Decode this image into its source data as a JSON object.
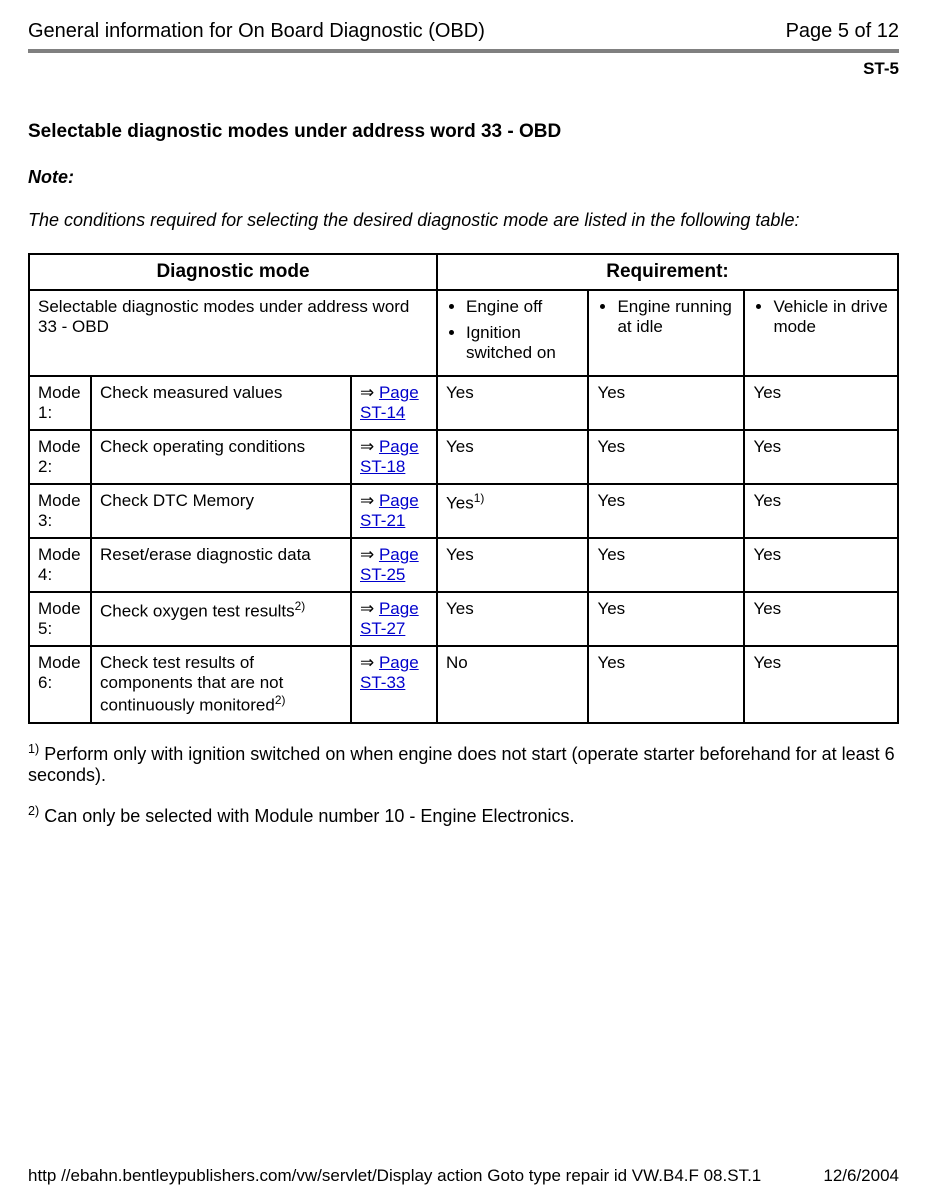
{
  "header": {
    "title": "General information for On Board Diagnostic (OBD)",
    "page_label": "Page 5 of 12"
  },
  "section_code": "ST-5",
  "section_title": "Selectable diagnostic modes under address word 33 - OBD",
  "note_label": "Note:",
  "note_text": "The conditions required for selecting the desired diagnostic mode are listed in the following table:",
  "table": {
    "header_diag": "Diagnostic mode",
    "header_req": "Requirement:",
    "subtitle": "Selectable diagnostic modes under address word 33 - OBD",
    "req_cols": [
      {
        "items": [
          "Engine off",
          "Ignition switched on"
        ]
      },
      {
        "items": [
          "Engine running at idle"
        ]
      },
      {
        "items": [
          "Vehicle in drive mode"
        ]
      }
    ],
    "rows": [
      {
        "mode": "Mode 1:",
        "desc": "Check measured values",
        "desc_sup": "",
        "ref": "Page ST-14",
        "r1": "Yes",
        "r1_sup": "",
        "r2": "Yes",
        "r3": "Yes"
      },
      {
        "mode": "Mode 2:",
        "desc": "Check operating conditions",
        "desc_sup": "",
        "ref": "Page ST-18",
        "r1": "Yes",
        "r1_sup": "",
        "r2": "Yes",
        "r3": "Yes"
      },
      {
        "mode": "Mode 3:",
        "desc": "Check DTC Memory",
        "desc_sup": "",
        "ref": "Page ST-21",
        "r1": "Yes",
        "r1_sup": "1)",
        "r2": "Yes",
        "r3": "Yes"
      },
      {
        "mode": "Mode 4:",
        "desc": "Reset/erase diagnostic data",
        "desc_sup": "",
        "ref": "Page ST-25",
        "r1": "Yes",
        "r1_sup": "",
        "r2": "Yes",
        "r3": "Yes"
      },
      {
        "mode": "Mode 5:",
        "desc": "Check oxygen test results",
        "desc_sup": "2)",
        "ref": "Page ST-27",
        "r1": "Yes",
        "r1_sup": "",
        "r2": "Yes",
        "r3": "Yes"
      },
      {
        "mode": "Mode 6:",
        "desc": "Check test results of components that are not continuously monitored",
        "desc_sup": "2)",
        "ref": "Page ST-33",
        "r1": "No",
        "r1_sup": "",
        "r2": "Yes",
        "r3": "Yes"
      }
    ]
  },
  "footnotes": [
    {
      "sup": "1)",
      "text": "Perform only with ignition switched on when engine does not start (operate starter beforehand for at least 6 seconds)."
    },
    {
      "sup": "2)",
      "text": "Can only be selected with Module number 10 - Engine Electronics."
    }
  ],
  "footer": {
    "url": "http //ebahn.bentleypublishers.com/vw/servlet/Display  action  Goto  type  repair  id  VW.B4.F  08.ST.1",
    "date": "12/6/2004"
  },
  "colors": {
    "link": "#0000cc",
    "rule": "#808080"
  }
}
